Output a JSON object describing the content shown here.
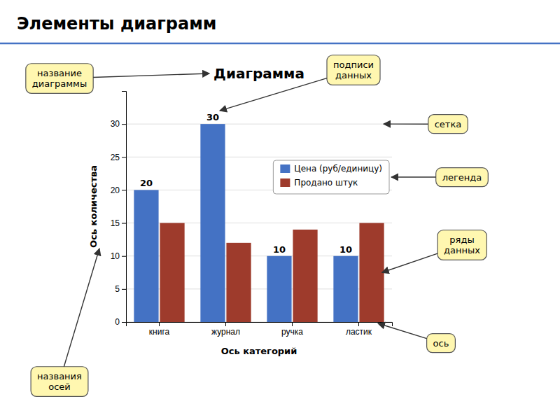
{
  "title": "Элементы диаграмм",
  "chart_data": {
    "type": "bar",
    "title": "Диаграмма",
    "categories": [
      "книга",
      "журнал",
      "ручка",
      "ластик"
    ],
    "series": [
      {
        "name": "Цена (руб/единицу)",
        "color": "#4472C4",
        "values": [
          20,
          30,
          10,
          10
        ],
        "data_labels": true
      },
      {
        "name": "Продано штук",
        "color": "#9E3B2C",
        "values": [
          15,
          12,
          14,
          15
        ]
      }
    ],
    "xlabel": "Ось категорий",
    "ylabel": "Ось количества",
    "ylim": [
      0,
      35
    ],
    "yticks": [
      0,
      5,
      10,
      15,
      20,
      25,
      30
    ],
    "grid": true,
    "legend": "upper right",
    "annotations": [
      "название\nдиаграммы",
      "подписи\nданных",
      "сетка",
      "легенда",
      "ряды\nданных",
      "ось",
      "названия\nосей"
    ]
  }
}
